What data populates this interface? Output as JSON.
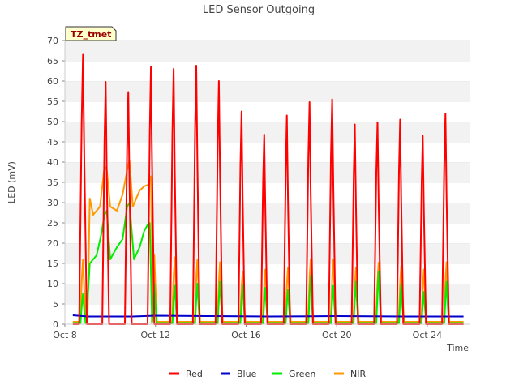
{
  "chart_data": {
    "type": "line",
    "title": "LED Sensor Outgoing",
    "xlabel": "Time",
    "ylabel": "LED (mV)",
    "badge": "TZ_tmet",
    "x_domain": [
      "Oct 8",
      "Oct 25.9"
    ],
    "x_ticks": [
      {
        "label": "Oct 8",
        "day": 8
      },
      {
        "label": "Oct 12",
        "day": 12
      },
      {
        "label": "Oct 16",
        "day": 16
      },
      {
        "label": "Oct 20",
        "day": 20
      },
      {
        "label": "Oct 24",
        "day": 24
      }
    ],
    "ylim": [
      0,
      70
    ],
    "y_ticks": [
      0,
      5,
      10,
      15,
      20,
      25,
      30,
      35,
      40,
      45,
      50,
      55,
      60,
      65,
      70
    ],
    "grid": "horizontal alternating bands",
    "legend_position": "bottom",
    "series": [
      {
        "name": "Red",
        "color": "#ff0000",
        "baseline": 0,
        "peaks": [
          {
            "day": 8.8,
            "value": 66.5,
            "width": 0.34
          },
          {
            "day": 9.8,
            "value": 59.8,
            "width": 0.3
          },
          {
            "day": 10.8,
            "value": 57.3,
            "width": 0.3
          },
          {
            "day": 11.8,
            "value": 63.5,
            "width": 0.3
          },
          {
            "day": 12.8,
            "value": 63.0,
            "width": 0.3
          },
          {
            "day": 13.8,
            "value": 63.8,
            "width": 0.3
          },
          {
            "day": 14.8,
            "value": 60.0,
            "width": 0.3
          },
          {
            "day": 15.8,
            "value": 52.5,
            "width": 0.28
          },
          {
            "day": 16.8,
            "value": 46.8,
            "width": 0.28
          },
          {
            "day": 17.8,
            "value": 51.5,
            "width": 0.28
          },
          {
            "day": 18.8,
            "value": 54.8,
            "width": 0.3
          },
          {
            "day": 19.8,
            "value": 55.5,
            "width": 0.3
          },
          {
            "day": 20.8,
            "value": 49.3,
            "width": 0.28
          },
          {
            "day": 21.8,
            "value": 49.8,
            "width": 0.3
          },
          {
            "day": 22.8,
            "value": 50.5,
            "width": 0.28
          },
          {
            "day": 23.8,
            "value": 46.5,
            "width": 0.28
          },
          {
            "day": 24.8,
            "value": 52.0,
            "width": 0.3
          }
        ]
      },
      {
        "name": "Blue",
        "color": "#0000cc",
        "start_day": 8.35,
        "end_day": 25.6,
        "points": [
          {
            "day": 8.35,
            "value": 2.2
          },
          {
            "day": 9.0,
            "value": 1.9
          },
          {
            "day": 11.0,
            "value": 1.9
          },
          {
            "day": 12.0,
            "value": 2.1
          },
          {
            "day": 14.5,
            "value": 2.0
          },
          {
            "day": 17.0,
            "value": 1.9
          },
          {
            "day": 20.0,
            "value": 2.0
          },
          {
            "day": 23.0,
            "value": 1.9
          },
          {
            "day": 25.6,
            "value": 1.9
          }
        ]
      },
      {
        "name": "Green",
        "color": "#00ee00",
        "baseline": 0.3,
        "plateau": [
          {
            "day": 8.95,
            "value": 0.5
          },
          {
            "day": 9.1,
            "value": 15.0
          },
          {
            "day": 9.4,
            "value": 17.0
          },
          {
            "day": 9.6,
            "value": 22.0
          },
          {
            "day": 9.75,
            "value": 27.0
          },
          {
            "day": 9.85,
            "value": 28.0
          },
          {
            "day": 10.0,
            "value": 16.0
          },
          {
            "day": 10.3,
            "value": 19.0
          },
          {
            "day": 10.55,
            "value": 21.0
          },
          {
            "day": 10.75,
            "value": 29.0
          },
          {
            "day": 10.85,
            "value": 30.0
          },
          {
            "day": 11.05,
            "value": 16.0
          },
          {
            "day": 11.3,
            "value": 19.0
          },
          {
            "day": 11.5,
            "value": 23.0
          },
          {
            "day": 11.65,
            "value": 24.5
          },
          {
            "day": 11.75,
            "value": 25.0
          },
          {
            "day": 11.85,
            "value": 0.5
          }
        ],
        "peaks": [
          {
            "day": 8.8,
            "value": 7.5,
            "width": 0.22
          },
          {
            "day": 11.95,
            "value": 10.0,
            "width": 0.2
          },
          {
            "day": 12.85,
            "value": 9.5,
            "width": 0.2
          },
          {
            "day": 13.85,
            "value": 10.0,
            "width": 0.2
          },
          {
            "day": 14.85,
            "value": 10.5,
            "width": 0.2
          },
          {
            "day": 15.85,
            "value": 9.5,
            "width": 0.2
          },
          {
            "day": 16.85,
            "value": 9.0,
            "width": 0.2
          },
          {
            "day": 17.85,
            "value": 8.5,
            "width": 0.2
          },
          {
            "day": 18.85,
            "value": 12.0,
            "width": 0.2
          },
          {
            "day": 19.85,
            "value": 9.5,
            "width": 0.2
          },
          {
            "day": 20.85,
            "value": 10.5,
            "width": 0.2
          },
          {
            "day": 21.85,
            "value": 13.0,
            "width": 0.2
          },
          {
            "day": 22.85,
            "value": 10.0,
            "width": 0.2
          },
          {
            "day": 23.85,
            "value": 8.0,
            "width": 0.2
          },
          {
            "day": 24.85,
            "value": 10.5,
            "width": 0.2
          }
        ]
      },
      {
        "name": "NIR",
        "color": "#ff9900",
        "baseline": 0.6,
        "plateau": [
          {
            "day": 9.0,
            "value": 1.0
          },
          {
            "day": 9.1,
            "value": 31.0
          },
          {
            "day": 9.25,
            "value": 27.0
          },
          {
            "day": 9.55,
            "value": 29.0
          },
          {
            "day": 9.75,
            "value": 39.0
          },
          {
            "day": 9.85,
            "value": 38.0
          },
          {
            "day": 10.0,
            "value": 29.0
          },
          {
            "day": 10.3,
            "value": 28.0
          },
          {
            "day": 10.55,
            "value": 32.0
          },
          {
            "day": 10.75,
            "value": 38.0
          },
          {
            "day": 10.85,
            "value": 40.5
          },
          {
            "day": 11.0,
            "value": 29.0
          },
          {
            "day": 11.3,
            "value": 33.0
          },
          {
            "day": 11.5,
            "value": 34.0
          },
          {
            "day": 11.7,
            "value": 34.5
          },
          {
            "day": 11.8,
            "value": 36.5
          },
          {
            "day": 11.9,
            "value": 1.0
          }
        ],
        "peaks": [
          {
            "day": 8.8,
            "value": 16.0,
            "width": 0.26
          },
          {
            "day": 11.95,
            "value": 17.0,
            "width": 0.22
          },
          {
            "day": 12.85,
            "value": 16.5,
            "width": 0.24
          },
          {
            "day": 13.85,
            "value": 16.0,
            "width": 0.24
          },
          {
            "day": 14.85,
            "value": 15.3,
            "width": 0.24
          },
          {
            "day": 15.85,
            "value": 13.0,
            "width": 0.24
          },
          {
            "day": 16.85,
            "value": 13.5,
            "width": 0.24
          },
          {
            "day": 17.85,
            "value": 14.0,
            "width": 0.24
          },
          {
            "day": 18.85,
            "value": 16.0,
            "width": 0.24
          },
          {
            "day": 19.85,
            "value": 16.0,
            "width": 0.24
          },
          {
            "day": 20.85,
            "value": 14.0,
            "width": 0.24
          },
          {
            "day": 21.85,
            "value": 15.2,
            "width": 0.24
          },
          {
            "day": 22.85,
            "value": 14.5,
            "width": 0.24
          },
          {
            "day": 23.85,
            "value": 13.5,
            "width": 0.24
          },
          {
            "day": 24.85,
            "value": 15.3,
            "width": 0.24
          }
        ]
      }
    ]
  }
}
